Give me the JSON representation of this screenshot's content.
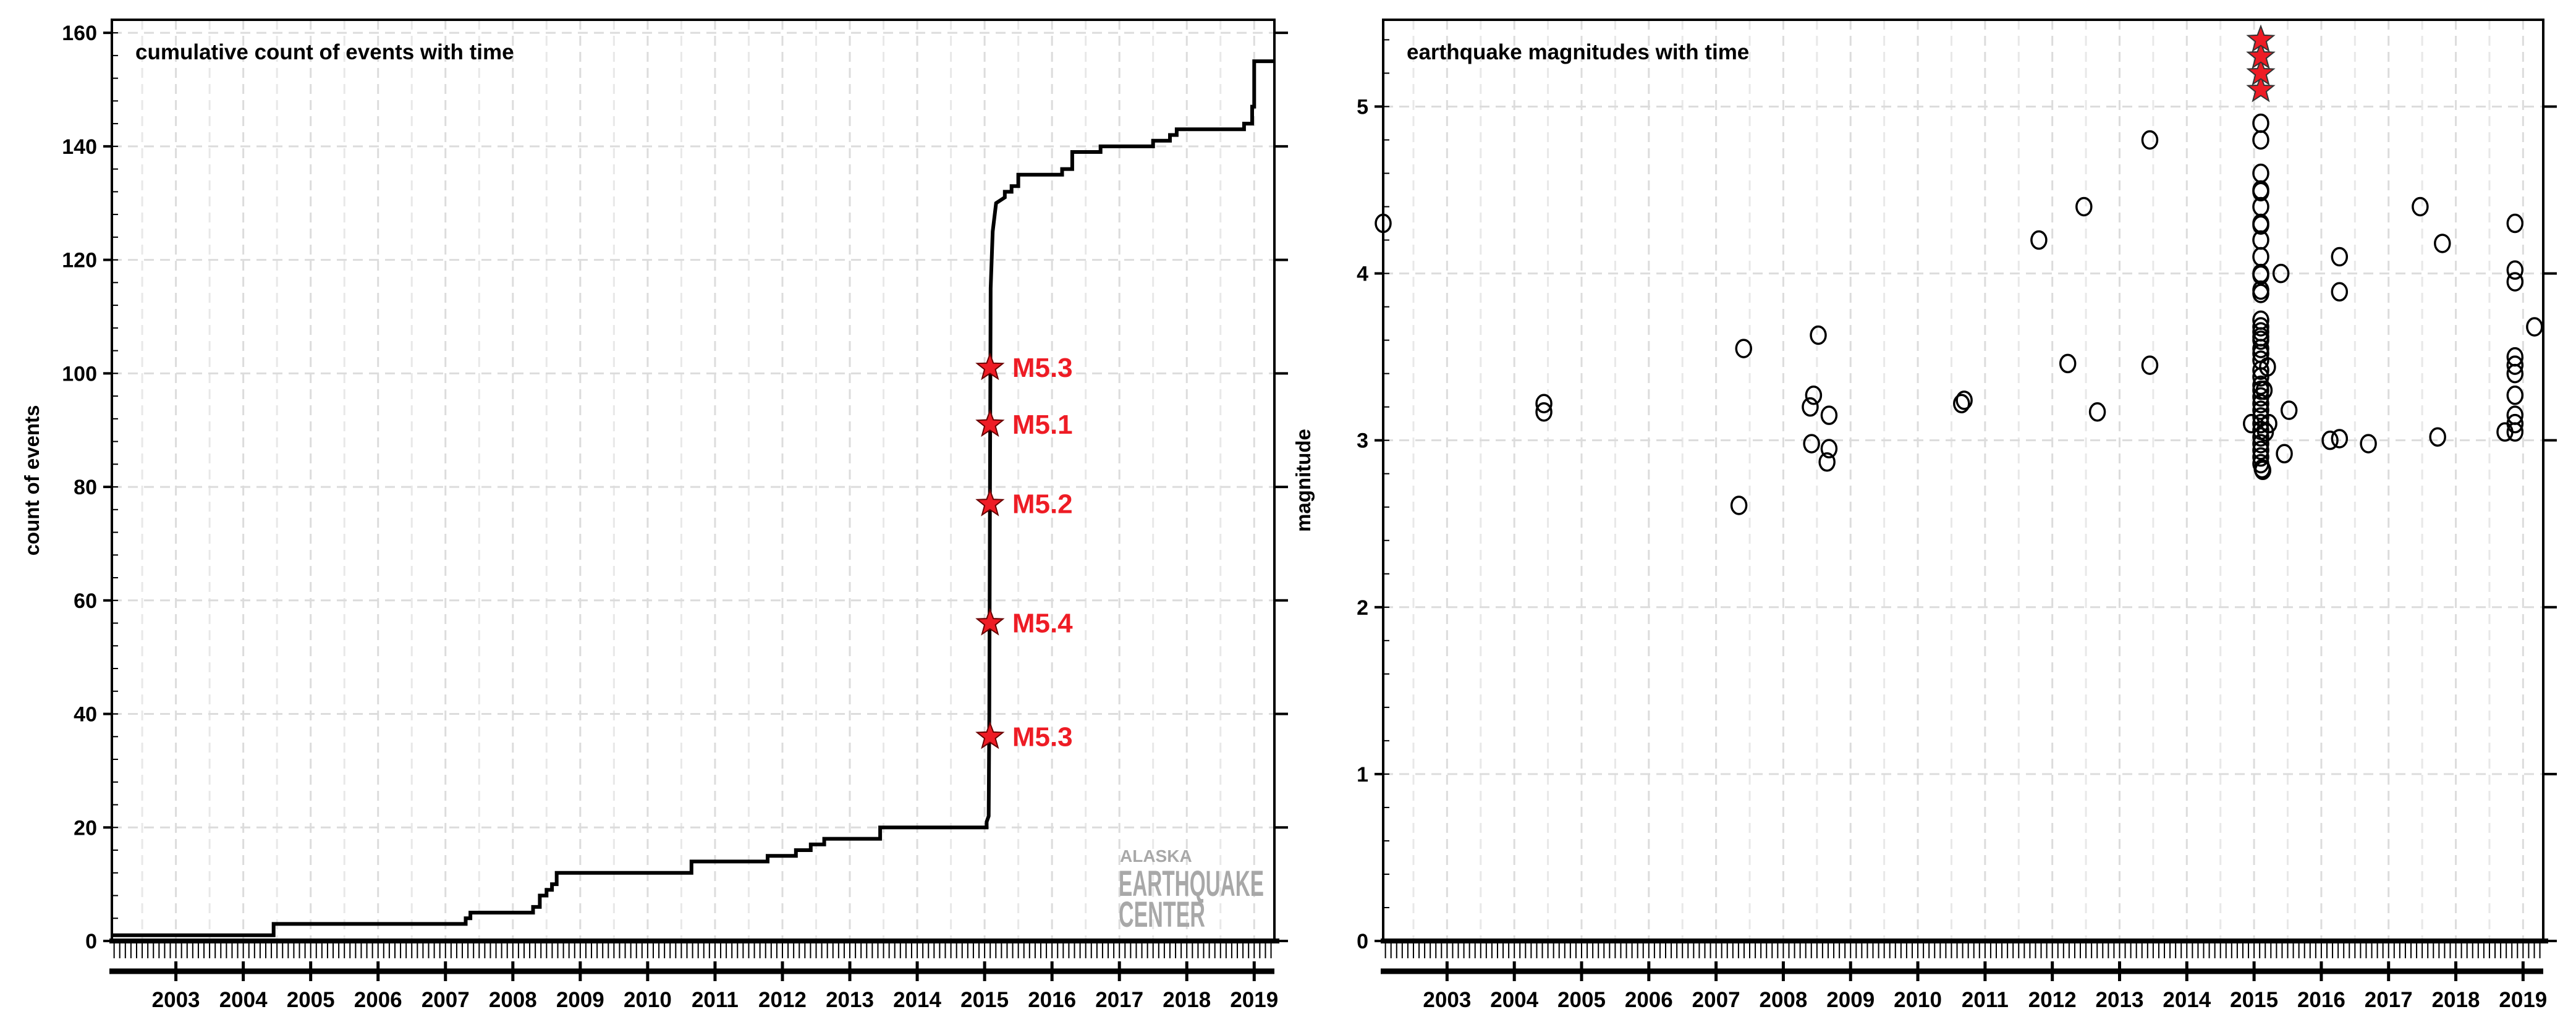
{
  "chart_data": [
    {
      "type": "line",
      "title": "cumulative count of events with time",
      "xlabel": "",
      "ylabel": "count of events",
      "xlim": [
        2002.05,
        2019.3
      ],
      "ylim": [
        0,
        162.3
      ],
      "xticks": [
        "2003",
        "2004",
        "2005",
        "2006",
        "2007",
        "2008",
        "2009",
        "2010",
        "2011",
        "2012",
        "2013",
        "2014",
        "2015",
        "2016",
        "2017",
        "2018",
        "2019"
      ],
      "yticks": [
        0,
        20,
        40,
        60,
        80,
        100,
        120,
        140,
        160
      ],
      "grid": true,
      "series": [
        {
          "name": "cumulative count",
          "color": "#000000",
          "points": [
            [
              2002.05,
              1
            ],
            [
              2004.45,
              1
            ],
            [
              2004.45,
              3
            ],
            [
              2007.3,
              3
            ],
            [
              2007.3,
              4
            ],
            [
              2007.37,
              4
            ],
            [
              2007.37,
              5
            ],
            [
              2008.3,
              5
            ],
            [
              2008.3,
              6
            ],
            [
              2008.4,
              6
            ],
            [
              2008.4,
              8
            ],
            [
              2008.5,
              8
            ],
            [
              2008.5,
              9
            ],
            [
              2008.58,
              9
            ],
            [
              2008.58,
              10
            ],
            [
              2008.65,
              10
            ],
            [
              2008.65,
              12
            ],
            [
              2010.65,
              12
            ],
            [
              2010.65,
              14
            ],
            [
              2011.78,
              14
            ],
            [
              2011.78,
              15
            ],
            [
              2012.2,
              15
            ],
            [
              2012.2,
              16
            ],
            [
              2012.42,
              16
            ],
            [
              2012.42,
              17
            ],
            [
              2012.62,
              17
            ],
            [
              2012.62,
              18
            ],
            [
              2013.45,
              18
            ],
            [
              2013.45,
              20
            ],
            [
              2015.03,
              20
            ],
            [
              2015.03,
              21
            ],
            [
              2015.06,
              22
            ],
            [
              2015.07,
              40
            ],
            [
              2015.08,
              80
            ],
            [
              2015.09,
              115
            ],
            [
              2015.12,
              125
            ],
            [
              2015.17,
              130
            ],
            [
              2015.3,
              131
            ],
            [
              2015.3,
              132
            ],
            [
              2015.4,
              132
            ],
            [
              2015.4,
              133
            ],
            [
              2015.5,
              133
            ],
            [
              2015.5,
              135
            ],
            [
              2016.15,
              135
            ],
            [
              2016.15,
              136
            ],
            [
              2016.3,
              136
            ],
            [
              2016.3,
              139
            ],
            [
              2016.72,
              139
            ],
            [
              2016.72,
              140
            ],
            [
              2017.5,
              140
            ],
            [
              2017.5,
              141
            ],
            [
              2017.75,
              141
            ],
            [
              2017.75,
              142
            ],
            [
              2017.85,
              142
            ],
            [
              2017.85,
              143
            ],
            [
              2018.85,
              143
            ],
            [
              2018.85,
              144
            ],
            [
              2018.97,
              144
            ],
            [
              2018.97,
              147
            ],
            [
              2019.0,
              147
            ],
            [
              2019.0,
              155
            ],
            [
              2019.3,
              155
            ]
          ]
        }
      ],
      "annotations": [
        {
          "x": 2015.08,
          "y": 36,
          "label": "M5.3"
        },
        {
          "x": 2015.08,
          "y": 56,
          "label": "M5.4"
        },
        {
          "x": 2015.08,
          "y": 77,
          "label": "M5.2"
        },
        {
          "x": 2015.08,
          "y": 91,
          "label": "M5.1"
        },
        {
          "x": 2015.08,
          "y": 101,
          "label": "M5.3"
        }
      ],
      "annotation_color": "#ee1c25",
      "logo": {
        "line1": "ALASKA",
        "line2": "EARTHQUAKE",
        "line3": "CENTER",
        "color": "#a8a8a8"
      }
    },
    {
      "type": "scatter",
      "title": "earthquake magnitudes with time",
      "xlabel": "",
      "ylabel": "magnitude",
      "xlim": [
        2002.05,
        2019.3
      ],
      "ylim": [
        0,
        5.52
      ],
      "xticks": [
        "2003",
        "2004",
        "2005",
        "2006",
        "2007",
        "2008",
        "2009",
        "2010",
        "2011",
        "2012",
        "2013",
        "2014",
        "2015",
        "2016",
        "2017",
        "2018",
        "2019"
      ],
      "yticks": [
        0,
        1,
        2,
        3,
        4,
        5
      ],
      "grid": true,
      "points": [
        [
          2002.05,
          4.3
        ],
        [
          2004.44,
          3.22
        ],
        [
          2004.44,
          3.17
        ],
        [
          2007.34,
          2.61
        ],
        [
          2007.41,
          3.55
        ],
        [
          2008.4,
          3.2
        ],
        [
          2008.45,
          3.27
        ],
        [
          2008.52,
          3.63
        ],
        [
          2008.42,
          2.98
        ],
        [
          2008.65,
          2.87
        ],
        [
          2008.68,
          3.15
        ],
        [
          2008.68,
          2.95
        ],
        [
          2010.65,
          3.22
        ],
        [
          2010.69,
          3.24
        ],
        [
          2011.8,
          4.2
        ],
        [
          2012.23,
          3.46
        ],
        [
          2012.47,
          4.4
        ],
        [
          2012.67,
          3.17
        ],
        [
          2013.45,
          4.8
        ],
        [
          2013.45,
          3.45
        ],
        [
          2015.1,
          4.9
        ],
        [
          2015.1,
          4.8
        ],
        [
          2015.1,
          4.6
        ],
        [
          2015.1,
          4.5
        ],
        [
          2015.1,
          4.49
        ],
        [
          2015.1,
          4.4
        ],
        [
          2015.1,
          4.3
        ],
        [
          2015.1,
          4.29
        ],
        [
          2015.1,
          4.2
        ],
        [
          2015.1,
          4.1
        ],
        [
          2015.1,
          4.0
        ],
        [
          2015.1,
          3.99
        ],
        [
          2015.1,
          3.9
        ],
        [
          2015.1,
          3.88
        ],
        [
          2015.1,
          3.72
        ],
        [
          2015.1,
          3.68
        ],
        [
          2015.1,
          3.65
        ],
        [
          2015.1,
          3.62
        ],
        [
          2015.1,
          3.6
        ],
        [
          2015.1,
          3.55
        ],
        [
          2015.1,
          3.52
        ],
        [
          2015.1,
          3.48
        ],
        [
          2015.1,
          3.42
        ],
        [
          2015.1,
          3.38
        ],
        [
          2015.1,
          3.33
        ],
        [
          2015.1,
          3.3
        ],
        [
          2015.1,
          3.26
        ],
        [
          2015.1,
          3.22
        ],
        [
          2015.1,
          3.18
        ],
        [
          2015.1,
          3.14
        ],
        [
          2015.1,
          3.1
        ],
        [
          2015.1,
          3.06
        ],
        [
          2015.1,
          3.02
        ],
        [
          2015.1,
          2.98
        ],
        [
          2015.1,
          2.94
        ],
        [
          2015.1,
          2.9
        ],
        [
          2015.1,
          2.86
        ],
        [
          2015.12,
          2.83
        ],
        [
          2015.13,
          2.82
        ],
        [
          2014.96,
          3.1
        ],
        [
          2015.15,
          3.3
        ],
        [
          2015.17,
          3.05
        ],
        [
          2015.2,
          3.44
        ],
        [
          2015.22,
          3.1
        ],
        [
          2015.4,
          4.0
        ],
        [
          2015.45,
          2.92
        ],
        [
          2015.52,
          3.18
        ],
        [
          2016.13,
          3.0
        ],
        [
          2016.27,
          3.01
        ],
        [
          2016.27,
          4.1
        ],
        [
          2016.27,
          3.89
        ],
        [
          2016.7,
          2.98
        ],
        [
          2017.47,
          4.4
        ],
        [
          2017.73,
          3.02
        ],
        [
          2017.8,
          4.18
        ],
        [
          2018.73,
          3.05
        ],
        [
          2018.88,
          4.3
        ],
        [
          2018.88,
          4.02
        ],
        [
          2018.88,
          3.95
        ],
        [
          2018.88,
          3.5
        ],
        [
          2018.88,
          3.45
        ],
        [
          2018.88,
          3.4
        ],
        [
          2018.88,
          3.27
        ],
        [
          2018.88,
          3.15
        ],
        [
          2018.88,
          3.1
        ],
        [
          2018.88,
          3.05
        ],
        [
          2019.17,
          3.68
        ]
      ],
      "stars": [
        [
          2015.1,
          5.1
        ],
        [
          2015.1,
          5.2
        ],
        [
          2015.1,
          5.3
        ],
        [
          2015.1,
          5.3
        ],
        [
          2015.1,
          5.4
        ]
      ],
      "star_color": "#ee1c25"
    }
  ]
}
